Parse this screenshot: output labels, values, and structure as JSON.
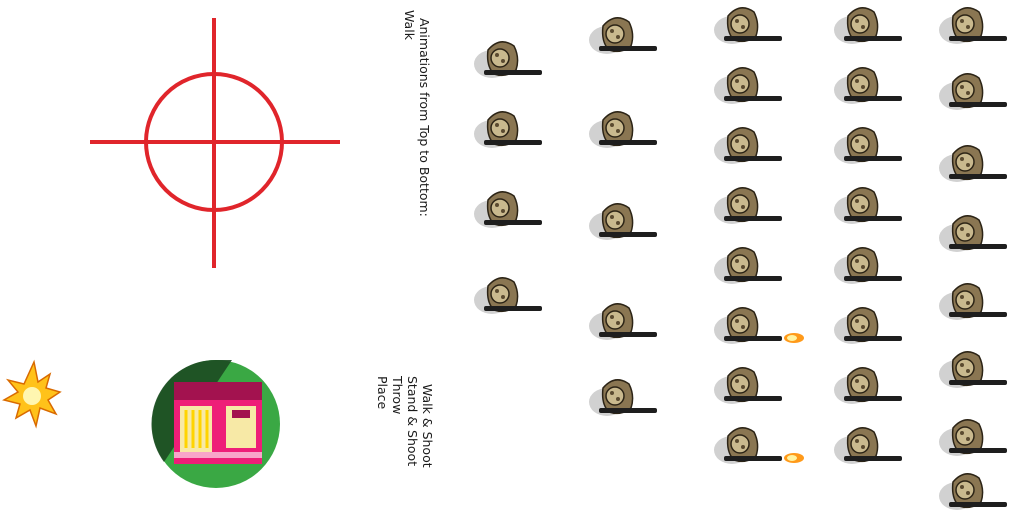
{
  "sheet": {
    "heading_line1": "Animations from Top to Bottom:",
    "heading_line2": "Walk",
    "list_line1": "Walk & Shoot",
    "list_line2": "Stand & Shoot",
    "list_line3": "Throw",
    "list_line4": "Place"
  },
  "icons": {
    "crosshair": "crosshair-icon",
    "explosion": "explosion-icon",
    "building": "building-badge-icon"
  },
  "colors": {
    "crosshair": "#e0252b",
    "badge_green": "#3aa844",
    "badge_dark_green": "#1d4a22",
    "building_magenta": "#a3124f",
    "building_pink": "#ee1e78",
    "window_yellow": "#f7e9a6",
    "camo_tan": "#c9b98e",
    "shadow": "#bdbdbd",
    "muzzle_flash": "#ff9a1a"
  }
}
